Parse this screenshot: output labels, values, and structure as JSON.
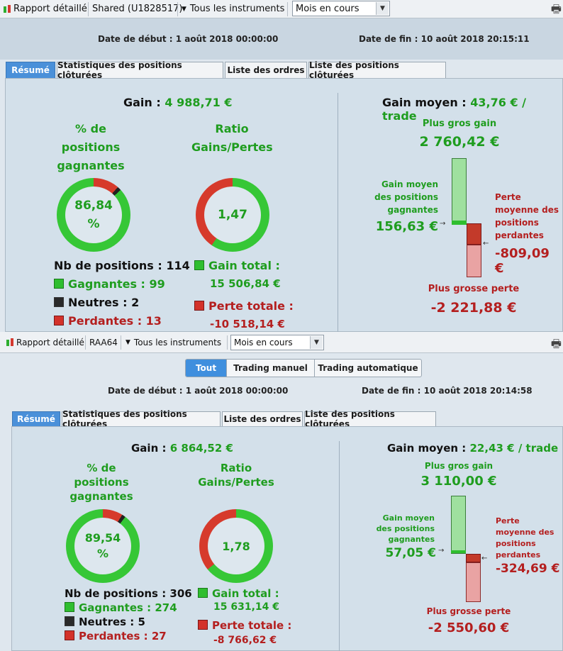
{
  "p1": {
    "toolbar": {
      "report": "Rapport détaillé",
      "account": "Shared (U1828517)",
      "instruments": "Tous les instruments",
      "period": "Mois en cours"
    },
    "dates": {
      "start_label": "Date de début :",
      "start": "1 août 2018 00:00:00",
      "end_label": "Date de fin :",
      "end": "10 août 2018 20:15:11"
    },
    "tabs": [
      "Résumé",
      "Statistiques des positions clôturées",
      "Liste des ordres",
      "Liste des positions clôturées"
    ],
    "gain_label": "Gain :",
    "gain_value": "4 988,71 €",
    "pct_title": [
      "% de",
      "positions",
      "gagnantes"
    ],
    "pct_value": "86,84",
    "pct_unit": "%",
    "pct_win_fraction": 0.8684,
    "pct_neutral_fraction": 0.0175,
    "ratio_title": [
      "Ratio",
      "Gains/Pertes"
    ],
    "ratio_value": "1,47",
    "ratio_gain_fraction": 0.5958,
    "nb_label": "Nb de positions : 114",
    "gagnantes": "Gagnantes : 99",
    "neutres": "Neutres : 2",
    "perdantes": "Perdantes : 13",
    "gain_total_label": "Gain total :",
    "gain_total_value": "15 506,84 €",
    "perte_totale_label": "Perte totale :",
    "perte_totale_value": "-10 518,14 €",
    "gain_moyen_label": "Gain moyen :",
    "gain_moyen_value": "43,76 € / trade",
    "plus_gros_gain_label": "Plus gros gain",
    "plus_gros_gain_value": "2 760,42 €",
    "gain_moyen_pos_label": [
      "Gain moyen",
      "des positions",
      "gagnantes"
    ],
    "gain_moyen_pos_value": "156,63 €",
    "perte_moyenne_label": [
      "Perte",
      "moyenne des",
      "positions",
      "perdantes"
    ],
    "perte_moyenne_value": "-809,09 €",
    "plus_grosse_perte_label": "Plus grosse perte",
    "plus_grosse_perte_value": "-2 221,88 €"
  },
  "p2": {
    "toolbar": {
      "report": "Rapport détaillé",
      "account": "RAA64",
      "instruments": "Tous les instruments",
      "period": "Mois en cours"
    },
    "segments": [
      "Tout",
      "Trading manuel",
      "Trading automatique"
    ],
    "dates": {
      "start_label": "Date de début :",
      "start": "1 août 2018 00:00:00",
      "end_label": "Date de fin :",
      "end": "10 août 2018 20:14:58"
    },
    "tabs": [
      "Résumé",
      "Statistiques des positions clôturées",
      "Liste des ordres",
      "Liste des positions clôturées"
    ],
    "gain_label": "Gain :",
    "gain_value": "6 864,52 €",
    "pct_title": [
      "% de",
      "positions",
      "gagnantes"
    ],
    "pct_value": "89,54",
    "pct_unit": "%",
    "pct_win_fraction": 0.8954,
    "pct_neutral_fraction": 0.0163,
    "ratio_title": [
      "Ratio",
      "Gains/Pertes"
    ],
    "ratio_value": "1,78",
    "ratio_gain_fraction": 0.6407,
    "nb_label": "Nb de positions : 306",
    "gagnantes": "Gagnantes : 274",
    "neutres": "Neutres : 5",
    "perdantes": "Perdantes : 27",
    "gain_total_label": "Gain total :",
    "gain_total_value": "15 631,14 €",
    "perte_totale_label": "Perte totale :",
    "perte_totale_value": "-8 766,62 €",
    "gain_moyen_label": "Gain moyen :",
    "gain_moyen_value": "22,43 € / trade",
    "plus_gros_gain_label": "Plus gros gain",
    "plus_gros_gain_value": "3 110,00 €",
    "gain_moyen_pos_label": [
      "Gain moyen",
      "des positions",
      "gagnantes"
    ],
    "gain_moyen_pos_value": "57,05 €",
    "perte_moyenne_label": [
      "Perte",
      "moyenne des",
      "positions",
      "perdantes"
    ],
    "perte_moyenne_value": "-324,69 €",
    "plus_grosse_perte_label": "Plus grosse perte",
    "plus_grosse_perte_value": "-2 550,60 €"
  },
  "colors": {
    "green": "#1f9d1f",
    "red": "#b41f1f",
    "tab_active": "#4a90d9",
    "donut_green": "#36c736",
    "donut_red": "#d63a2c",
    "donut_neutral": "#222222"
  },
  "icons": [
    "candlestick-icon",
    "chevron-down-icon",
    "printer-icon"
  ]
}
